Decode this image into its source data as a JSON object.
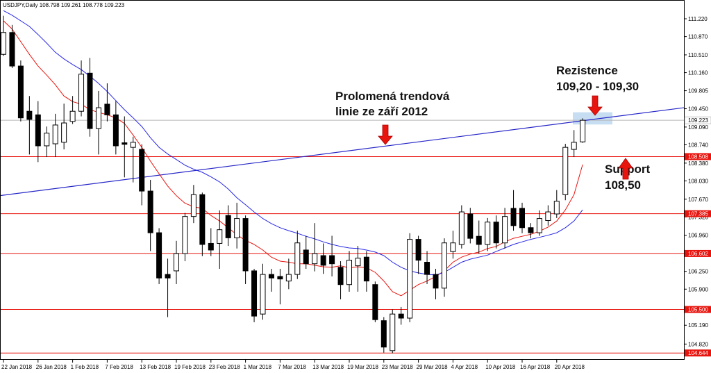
{
  "chart_data": {
    "type": "candlestick",
    "header": "USDJPY,Daily  108.798 109.261 108.778 109.223",
    "categories": [
      "22 Jan 2018",
      null,
      null,
      null,
      "26 Jan 2018",
      null,
      null,
      null,
      "1 Feb 2018",
      null,
      null,
      null,
      "7 Feb 2018",
      null,
      null,
      null,
      "13 Feb 2018",
      null,
      null,
      null,
      "19 Feb 2018",
      null,
      null,
      null,
      "23 Feb 2018",
      null,
      null,
      null,
      "1 Mar 2018",
      null,
      null,
      null,
      "7 Mar 2018",
      null,
      null,
      null,
      "13 Mar 2018",
      null,
      null,
      null,
      "19 Mar 2018",
      null,
      null,
      null,
      "23 Mar 2018",
      null,
      null,
      null,
      "29 Mar 2018",
      null,
      null,
      null,
      "4 Apr 2018",
      null,
      null,
      null,
      "10 Apr 2018",
      null,
      null,
      null,
      "16 Apr 2018",
      null,
      null,
      null,
      "20 Apr 2018",
      null,
      null,
      null
    ],
    "open": [
      110.52,
      110.95,
      110.29,
      109.4,
      109.33,
      108.72,
      108.76,
      108.79,
      109.2,
      109.4,
      110.15,
      109.06,
      109.54,
      109.33,
      108.78,
      108.69,
      108.65,
      107.83,
      107.01,
      106.19,
      106.26,
      106.6,
      107.33,
      107.76,
      106.8,
      106.8,
      107.35,
      106.91,
      107.29,
      106.26,
      105.41,
      106.19,
      106.15,
      106.06,
      106.19,
      106.67,
      106.4,
      106.56,
      106.56,
      106.33,
      105.99,
      106.36,
      106.53,
      105.99,
      105.28,
      104.69,
      105.41,
      105.33,
      106.88,
      106.43,
      106.19,
      105.92,
      106.64,
      106.78,
      107.38,
      106.94,
      106.78,
      107.22,
      106.81,
      107.49,
      107.49,
      107.11,
      107.01,
      107.25,
      107.38,
      107.76,
      108.65,
      108.798
    ],
    "high": [
      111.28,
      111.1,
      110.4,
      109.7,
      109.6,
      109.1,
      109.35,
      109.55,
      109.7,
      110.4,
      110.45,
      109.8,
      109.95,
      109.6,
      109.3,
      108.9,
      108.75,
      108.05,
      107.1,
      106.5,
      106.85,
      107.4,
      107.95,
      107.8,
      107.1,
      107.45,
      107.55,
      107.6,
      107.35,
      106.3,
      106.4,
      106.3,
      106.3,
      106.5,
      107.05,
      106.95,
      107.2,
      106.8,
      106.95,
      106.45,
      106.65,
      106.75,
      106.65,
      106.05,
      105.35,
      105.5,
      105.55,
      107.0,
      106.95,
      106.65,
      106.3,
      106.9,
      107.05,
      107.55,
      107.5,
      107.25,
      107.3,
      107.35,
      107.5,
      107.85,
      107.6,
      107.2,
      107.45,
      107.55,
      107.85,
      108.76,
      109.03,
      109.261
    ],
    "low": [
      110.49,
      110.25,
      109.2,
      108.55,
      108.4,
      108.5,
      108.5,
      108.65,
      109.15,
      109.3,
      108.9,
      108.55,
      109.2,
      108.55,
      108.1,
      108.0,
      107.55,
      106.65,
      106.0,
      105.35,
      106.0,
      106.45,
      107.2,
      106.55,
      106.55,
      106.3,
      106.75,
      106.7,
      106.0,
      105.25,
      105.3,
      105.85,
      105.6,
      105.9,
      106.1,
      106.3,
      106.25,
      106.2,
      106.15,
      105.7,
      105.85,
      105.85,
      105.85,
      105.25,
      104.65,
      104.64,
      105.2,
      105.25,
      106.2,
      106.0,
      105.7,
      105.75,
      106.5,
      106.7,
      106.8,
      106.6,
      106.65,
      106.7,
      106.7,
      107.05,
      107.0,
      106.9,
      106.95,
      107.15,
      107.3,
      107.65,
      108.5,
      108.778
    ],
    "close": [
      110.95,
      110.29,
      109.27,
      109.24,
      108.72,
      108.97,
      109.13,
      109.17,
      109.4,
      110.13,
      109.06,
      109.47,
      109.33,
      108.72,
      108.75,
      108.79,
      107.83,
      107.01,
      106.12,
      106.12,
      106.6,
      107.33,
      107.76,
      106.78,
      106.67,
      107.07,
      106.91,
      107.29,
      106.26,
      105.37,
      106.19,
      106.12,
      106.1,
      106.19,
      106.81,
      106.4,
      106.6,
      106.37,
      106.4,
      105.99,
      106.47,
      106.51,
      106.06,
      105.3,
      104.76,
      105.41,
      105.33,
      106.88,
      106.47,
      106.19,
      105.92,
      106.81,
      106.81,
      107.42,
      106.9,
      106.78,
      107.22,
      106.81,
      107.33,
      107.15,
      107.11,
      107.01,
      107.29,
      107.42,
      107.63,
      108.69,
      108.79,
      109.223
    ],
    "lines": [
      {
        "color": "#e8140e",
        "values": [
          111.18,
          111.02,
          110.77,
          110.52,
          110.29,
          110.11,
          109.92,
          109.7,
          109.59,
          109.54,
          109.43,
          109.38,
          109.33,
          109.27,
          109.16,
          108.93,
          108.69,
          108.42,
          108.17,
          107.93,
          107.74,
          107.59,
          107.52,
          107.49,
          107.35,
          107.24,
          107.11,
          106.97,
          106.86,
          106.78,
          106.67,
          106.53,
          106.45,
          106.43,
          106.4,
          106.4,
          106.37,
          106.34,
          106.33,
          106.36,
          106.32,
          106.34,
          106.32,
          106.23,
          106.06,
          105.85,
          105.77,
          105.88,
          105.99,
          106.06,
          106.15,
          106.26,
          106.43,
          106.53,
          106.59,
          106.63,
          106.7,
          106.74,
          106.83,
          106.9,
          106.94,
          106.98,
          107.04,
          107.12,
          107.24,
          107.46,
          107.76,
          108.35
        ]
      },
      {
        "color": "#2626e6",
        "values": [
          111.38,
          111.29,
          111.18,
          111.07,
          110.91,
          110.74,
          110.56,
          110.43,
          110.32,
          110.22,
          110.09,
          109.95,
          109.79,
          109.61,
          109.43,
          109.27,
          109.1,
          108.88,
          108.69,
          108.56,
          108.45,
          108.34,
          108.26,
          108.2,
          108.11,
          108.01,
          107.87,
          107.7,
          107.56,
          107.42,
          107.29,
          107.19,
          107.11,
          107.05,
          107.0,
          106.94,
          106.89,
          106.83,
          106.78,
          106.74,
          106.71,
          106.7,
          106.67,
          106.63,
          106.56,
          106.43,
          106.33,
          106.26,
          106.22,
          106.19,
          106.18,
          106.23,
          106.33,
          106.43,
          106.49,
          106.53,
          106.57,
          106.64,
          106.71,
          106.78,
          106.83,
          106.88,
          106.92,
          106.96,
          107.01,
          107.11,
          107.24,
          107.46
        ]
      }
    ],
    "trendline": {
      "color": "#2626c8",
      "values": [
        107.74,
        109.47
      ]
    },
    "levels": [
      {
        "value": 108.508,
        "label": "108.508"
      },
      {
        "value": 107.385,
        "label": "107.385"
      },
      {
        "value": 106.602,
        "label": "106.602"
      },
      {
        "value": 105.5,
        "label": "105.500"
      },
      {
        "value": 104.644,
        "label": "104.644"
      }
    ],
    "level_color": "#e8140e",
    "current": {
      "value": 109.223,
      "label": "109.223"
    },
    "zone": [
      109.14,
      109.38
    ],
    "ylim": [
      104.51,
      111.48
    ],
    "yticks": [
      {
        "value": 111.22,
        "label": "111.220"
      },
      {
        "value": 110.87,
        "label": "110.870"
      },
      {
        "value": 110.51,
        "label": "110.510"
      },
      {
        "value": 110.16,
        "label": "110.160"
      },
      {
        "value": 109.805,
        "label": "109.805"
      },
      {
        "value": 109.45,
        "label": "109.450"
      },
      {
        "value": 109.09,
        "label": "109.090"
      },
      {
        "value": 108.74,
        "label": "108.740"
      },
      {
        "value": 108.38,
        "label": "108.380"
      },
      {
        "value": 108.03,
        "label": "108.030"
      },
      {
        "value": 107.67,
        "label": "107.670"
      },
      {
        "value": 107.32,
        "label": "107.320"
      },
      {
        "value": 106.96,
        "label": "106.960"
      },
      {
        "value": 106.25,
        "label": "106.250"
      },
      {
        "value": 105.9,
        "label": "105.900"
      },
      {
        "value": 105.19,
        "label": "105.190"
      },
      {
        "value": 104.82,
        "label": "104.820"
      }
    ],
    "annotations": {
      "trend": [
        "Prolomená trendová",
        "linie ze září 2012"
      ],
      "resistance": [
        "Rezistence",
        "109,20 - 109,30"
      ],
      "support": [
        "Support",
        "108,50"
      ]
    }
  }
}
